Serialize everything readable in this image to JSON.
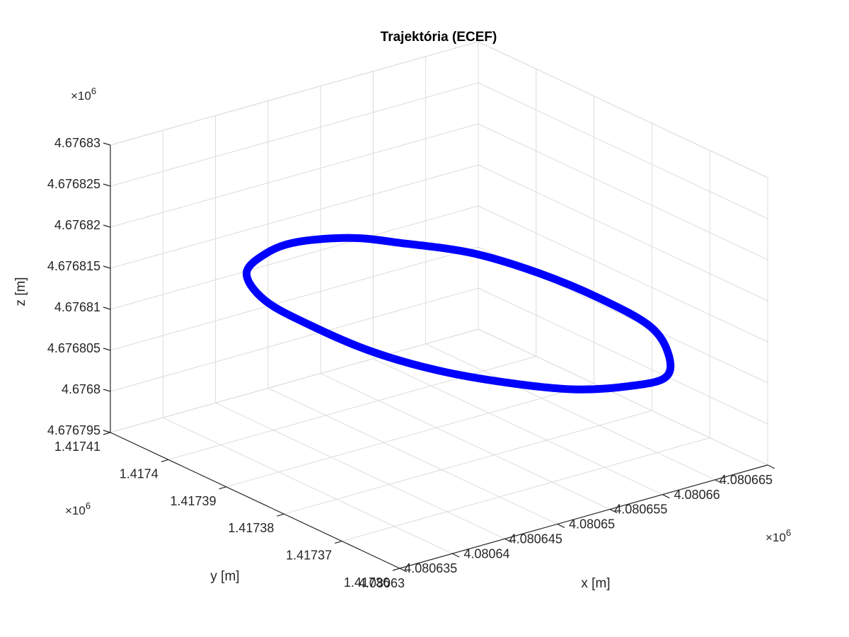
{
  "chart_data": {
    "type": "line3d",
    "title": "Trajektória (ECEF)",
    "xlabel": "x [m]",
    "ylabel": "y [m]",
    "zlabel": "z [m]",
    "x_exponent": "×10",
    "y_exponent": "×10",
    "z_exponent": "×10",
    "exponent_power": "6",
    "x_ticks": [
      "4.08063",
      "4.080635",
      "4.08064",
      "4.080645",
      "4.08065",
      "4.080655",
      "4.08066",
      "4.080665"
    ],
    "y_ticks": [
      "1.41736",
      "1.41737",
      "1.41738",
      "1.41739",
      "1.4174",
      "1.41741"
    ],
    "z_ticks": [
      "4.676795",
      "4.6768",
      "4.676805",
      "4.67681",
      "4.676815",
      "4.67682",
      "4.676825",
      "4.67683"
    ],
    "xlim": [
      4.08063,
      4.080665
    ],
    "ylim": [
      1.41736,
      1.41741
    ],
    "zlim": [
      4.676795,
      4.67683
    ],
    "grid": true,
    "series": [
      {
        "color": "#0000ff",
        "points": [
          {
            "x": 4.080644,
            "y": 1.417403,
            "z": 4.6768155
          },
          {
            "x": 4.080648,
            "y": 1.417401,
            "z": 4.6768152
          },
          {
            "x": 4.080651,
            "y": 1.417398,
            "z": 4.6768145
          },
          {
            "x": 4.080655,
            "y": 1.417393,
            "z": 4.6768135
          },
          {
            "x": 4.080658,
            "y": 1.417387,
            "z": 4.676812
          },
          {
            "x": 4.08066,
            "y": 1.41738,
            "z": 4.6768105
          },
          {
            "x": 4.080661,
            "y": 1.417373,
            "z": 4.676809
          },
          {
            "x": 4.08066,
            "y": 1.417368,
            "z": 4.6768075
          },
          {
            "x": 4.080658,
            "y": 1.417365,
            "z": 4.6768065
          },
          {
            "x": 4.080655,
            "y": 1.417366,
            "z": 4.6768062
          },
          {
            "x": 4.080651,
            "y": 1.417368,
            "z": 4.6768066
          },
          {
            "x": 4.080647,
            "y": 1.417372,
            "z": 4.6768075
          },
          {
            "x": 4.080643,
            "y": 1.417377,
            "z": 4.6768088
          },
          {
            "x": 4.08064,
            "y": 1.417383,
            "z": 4.6768102
          },
          {
            "x": 4.080638,
            "y": 1.41739,
            "z": 4.6768118
          },
          {
            "x": 4.080637,
            "y": 1.417396,
            "z": 4.6768132
          },
          {
            "x": 4.080638,
            "y": 1.417401,
            "z": 4.6768145
          },
          {
            "x": 4.080641,
            "y": 1.417403,
            "z": 4.6768152
          },
          {
            "x": 4.080644,
            "y": 1.417403,
            "z": 4.6768155
          }
        ]
      }
    ]
  }
}
